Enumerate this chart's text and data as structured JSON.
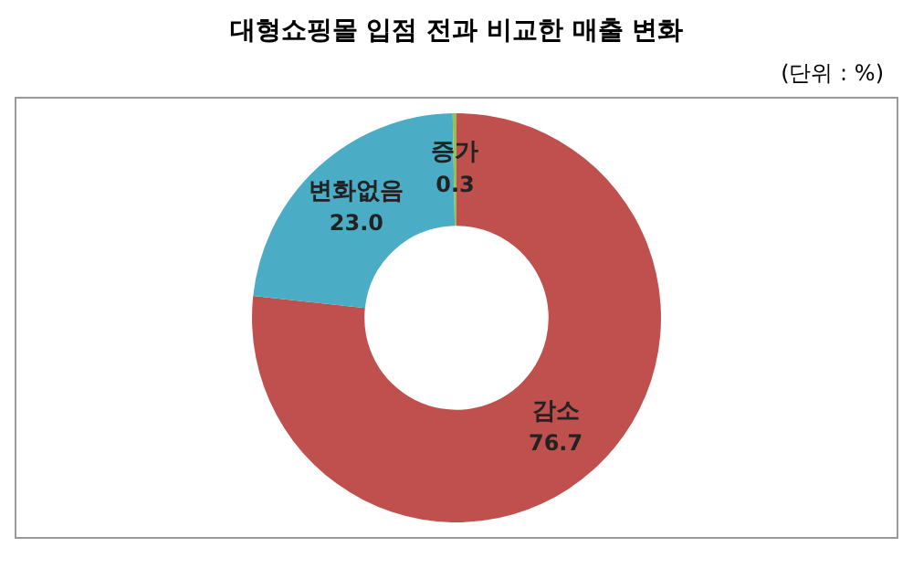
{
  "chart_data": {
    "type": "donut",
    "title": "대형쇼핑몰 입점 전과 비교한 매출 변화",
    "annotations": [
      "(단위 : %)"
    ],
    "categories": [
      "감소",
      "변화없음",
      "증가"
    ],
    "values": [
      76.7,
      23.0,
      0.3
    ],
    "value_labels": [
      "76.7",
      "23.0",
      "0.3"
    ],
    "colors": [
      "#c0504d",
      "#4bacc6",
      "#9bbb59"
    ],
    "legend": false
  }
}
